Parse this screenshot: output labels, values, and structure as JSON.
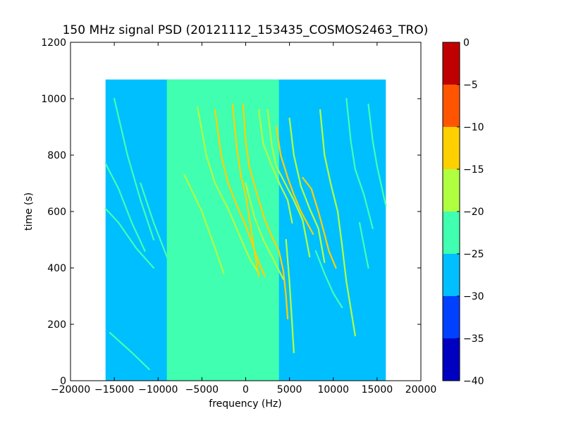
{
  "chart_data": {
    "type": "heatmap",
    "title": "150 MHz signal PSD (20121112_153435_COSMOS2463_TRO)",
    "xlabel": "frequency (Hz)",
    "ylabel": "time (s)",
    "xlim": [
      -20000,
      20000
    ],
    "ylim": [
      0,
      1200
    ],
    "x_ticks": [
      -20000,
      -15000,
      -10000,
      -5000,
      0,
      5000,
      10000,
      15000,
      20000
    ],
    "x_tick_labels": [
      "−20000",
      "−15000",
      "−10000",
      "−5000",
      "0",
      "5000",
      "10000",
      "15000",
      "20000"
    ],
    "y_ticks": [
      0,
      200,
      400,
      600,
      800,
      1000,
      1200
    ],
    "y_tick_labels": [
      "0",
      "200",
      "400",
      "600",
      "800",
      "1000",
      "1200"
    ],
    "data_extent": {
      "x": [
        -16000,
        16000
      ],
      "y": [
        0,
        1068
      ]
    },
    "colorbar": {
      "range": [
        -40,
        0
      ],
      "ticks": [
        0,
        -5,
        -10,
        -15,
        -20,
        -25,
        -30,
        -35,
        -40
      ],
      "tick_labels": [
        "0",
        "−5",
        "−10",
        "−15",
        "−20",
        "−25",
        "−30",
        "−35",
        "−40"
      ],
      "bands": [
        {
          "from": -40,
          "to": -35,
          "color": "#0000c0"
        },
        {
          "from": -35,
          "to": -30,
          "color": "#0040ff"
        },
        {
          "from": -30,
          "to": -25,
          "color": "#00bfff"
        },
        {
          "from": -25,
          "to": -20,
          "color": "#40ffb0"
        },
        {
          "from": -20,
          "to": -15,
          "color": "#b0ff40"
        },
        {
          "from": -15,
          "to": -10,
          "color": "#ffd000"
        },
        {
          "from": -10,
          "to": -5,
          "color": "#ff5500"
        },
        {
          "from": -5,
          "to": 0,
          "color": "#c00000"
        }
      ]
    },
    "background_regions": [
      {
        "x": [
          -16000,
          16000
        ],
        "y": [
          0,
          1068
        ],
        "level": -27.5
      },
      {
        "x": [
          -9000,
          3800
        ],
        "y": [
          0,
          1068
        ],
        "level": -22.5
      }
    ],
    "traces": [
      {
        "level": -22.5,
        "points": [
          [
            -16000,
            770
          ],
          [
            -14500,
            680
          ],
          [
            -13000,
            560
          ],
          [
            -11500,
            460
          ]
        ]
      },
      {
        "level": -22.5,
        "points": [
          [
            -16000,
            610
          ],
          [
            -14500,
            560
          ],
          [
            -12500,
            470
          ],
          [
            -10500,
            400
          ]
        ]
      },
      {
        "level": -22.5,
        "points": [
          [
            -15000,
            1000
          ],
          [
            -13500,
            800
          ],
          [
            -12000,
            640
          ],
          [
            -10500,
            500
          ]
        ]
      },
      {
        "level": -22.5,
        "points": [
          [
            -15500,
            170
          ],
          [
            -13000,
            100
          ],
          [
            -11000,
            40
          ]
        ]
      },
      {
        "level": -22.5,
        "points": [
          [
            -12000,
            700
          ],
          [
            -10500,
            560
          ],
          [
            -9000,
            440
          ],
          [
            -8000,
            360
          ]
        ]
      },
      {
        "level": -17.5,
        "points": [
          [
            -7000,
            730
          ],
          [
            -5000,
            600
          ],
          [
            -3500,
            470
          ],
          [
            -2500,
            380
          ]
        ]
      },
      {
        "level": -17.5,
        "points": [
          [
            -5500,
            970
          ],
          [
            -4500,
            800
          ],
          [
            -3500,
            700
          ],
          [
            -2000,
            610
          ],
          [
            -500,
            500
          ],
          [
            500,
            430
          ],
          [
            1500,
            380
          ]
        ]
      },
      {
        "level": -12.5,
        "points": [
          [
            -3500,
            960
          ],
          [
            -2800,
            800
          ],
          [
            -2000,
            700
          ],
          [
            -1000,
            620
          ],
          [
            0,
            550
          ],
          [
            700,
            490
          ],
          [
            1500,
            420
          ],
          [
            2200,
            370
          ]
        ]
      },
      {
        "level": -12.5,
        "points": [
          [
            -1500,
            980
          ],
          [
            -1000,
            820
          ],
          [
            -500,
            720
          ],
          [
            0,
            660
          ],
          [
            500,
            560
          ],
          [
            1000,
            460
          ],
          [
            1500,
            370
          ]
        ]
      },
      {
        "level": -12.5,
        "points": [
          [
            -300,
            980
          ],
          [
            0,
            850
          ],
          [
            400,
            760
          ],
          [
            1300,
            660
          ],
          [
            2200,
            570
          ],
          [
            3000,
            510
          ],
          [
            3800,
            460
          ],
          [
            4300,
            390
          ],
          [
            4600,
            300
          ],
          [
            4800,
            220
          ]
        ]
      },
      {
        "level": -17.5,
        "points": [
          [
            0,
            700
          ],
          [
            1000,
            580
          ],
          [
            2000,
            500
          ],
          [
            3000,
            440
          ],
          [
            4300,
            360
          ]
        ]
      },
      {
        "level": -17.5,
        "points": [
          [
            1500,
            960
          ],
          [
            2000,
            840
          ],
          [
            3000,
            760
          ],
          [
            4000,
            690
          ],
          [
            4800,
            640
          ],
          [
            5300,
            560
          ]
        ]
      },
      {
        "level": -17.5,
        "points": [
          [
            2500,
            960
          ],
          [
            3000,
            830
          ],
          [
            3500,
            760
          ],
          [
            4500,
            700
          ],
          [
            5500,
            640
          ],
          [
            6500,
            570
          ],
          [
            7300,
            440
          ]
        ]
      },
      {
        "level": -12.5,
        "points": [
          [
            3500,
            900
          ],
          [
            4000,
            800
          ],
          [
            4800,
            720
          ],
          [
            5500,
            660
          ],
          [
            6300,
            600
          ],
          [
            7000,
            560
          ],
          [
            7700,
            520
          ]
        ]
      },
      {
        "level": -17.5,
        "points": [
          [
            4600,
            500
          ],
          [
            5000,
            350
          ],
          [
            5300,
            200
          ],
          [
            5500,
            100
          ]
        ]
      },
      {
        "level": -17.5,
        "points": [
          [
            5000,
            930
          ],
          [
            5500,
            800
          ],
          [
            6300,
            690
          ],
          [
            7300,
            610
          ],
          [
            8300,
            540
          ],
          [
            9000,
            420
          ]
        ]
      },
      {
        "level": -12.5,
        "points": [
          [
            6500,
            720
          ],
          [
            7500,
            680
          ],
          [
            8300,
            600
          ],
          [
            9000,
            520
          ],
          [
            9500,
            460
          ],
          [
            10300,
            400
          ]
        ]
      },
      {
        "level": -17.5,
        "points": [
          [
            8500,
            960
          ],
          [
            9000,
            800
          ],
          [
            9700,
            700
          ],
          [
            10500,
            600
          ],
          [
            11000,
            480
          ],
          [
            11500,
            350
          ],
          [
            12500,
            160
          ]
        ]
      },
      {
        "level": -22.5,
        "points": [
          [
            11500,
            1000
          ],
          [
            12000,
            850
          ],
          [
            12500,
            750
          ],
          [
            13500,
            660
          ],
          [
            14500,
            540
          ]
        ]
      },
      {
        "level": -22.5,
        "points": [
          [
            14000,
            980
          ],
          [
            14500,
            850
          ],
          [
            15000,
            760
          ],
          [
            16000,
            620
          ]
        ]
      },
      {
        "level": -22.5,
        "points": [
          [
            8000,
            460
          ],
          [
            9000,
            380
          ],
          [
            10000,
            310
          ],
          [
            11000,
            260
          ]
        ]
      },
      {
        "level": -22.5,
        "points": [
          [
            13000,
            560
          ],
          [
            13500,
            480
          ],
          [
            14000,
            400
          ]
        ]
      }
    ]
  }
}
